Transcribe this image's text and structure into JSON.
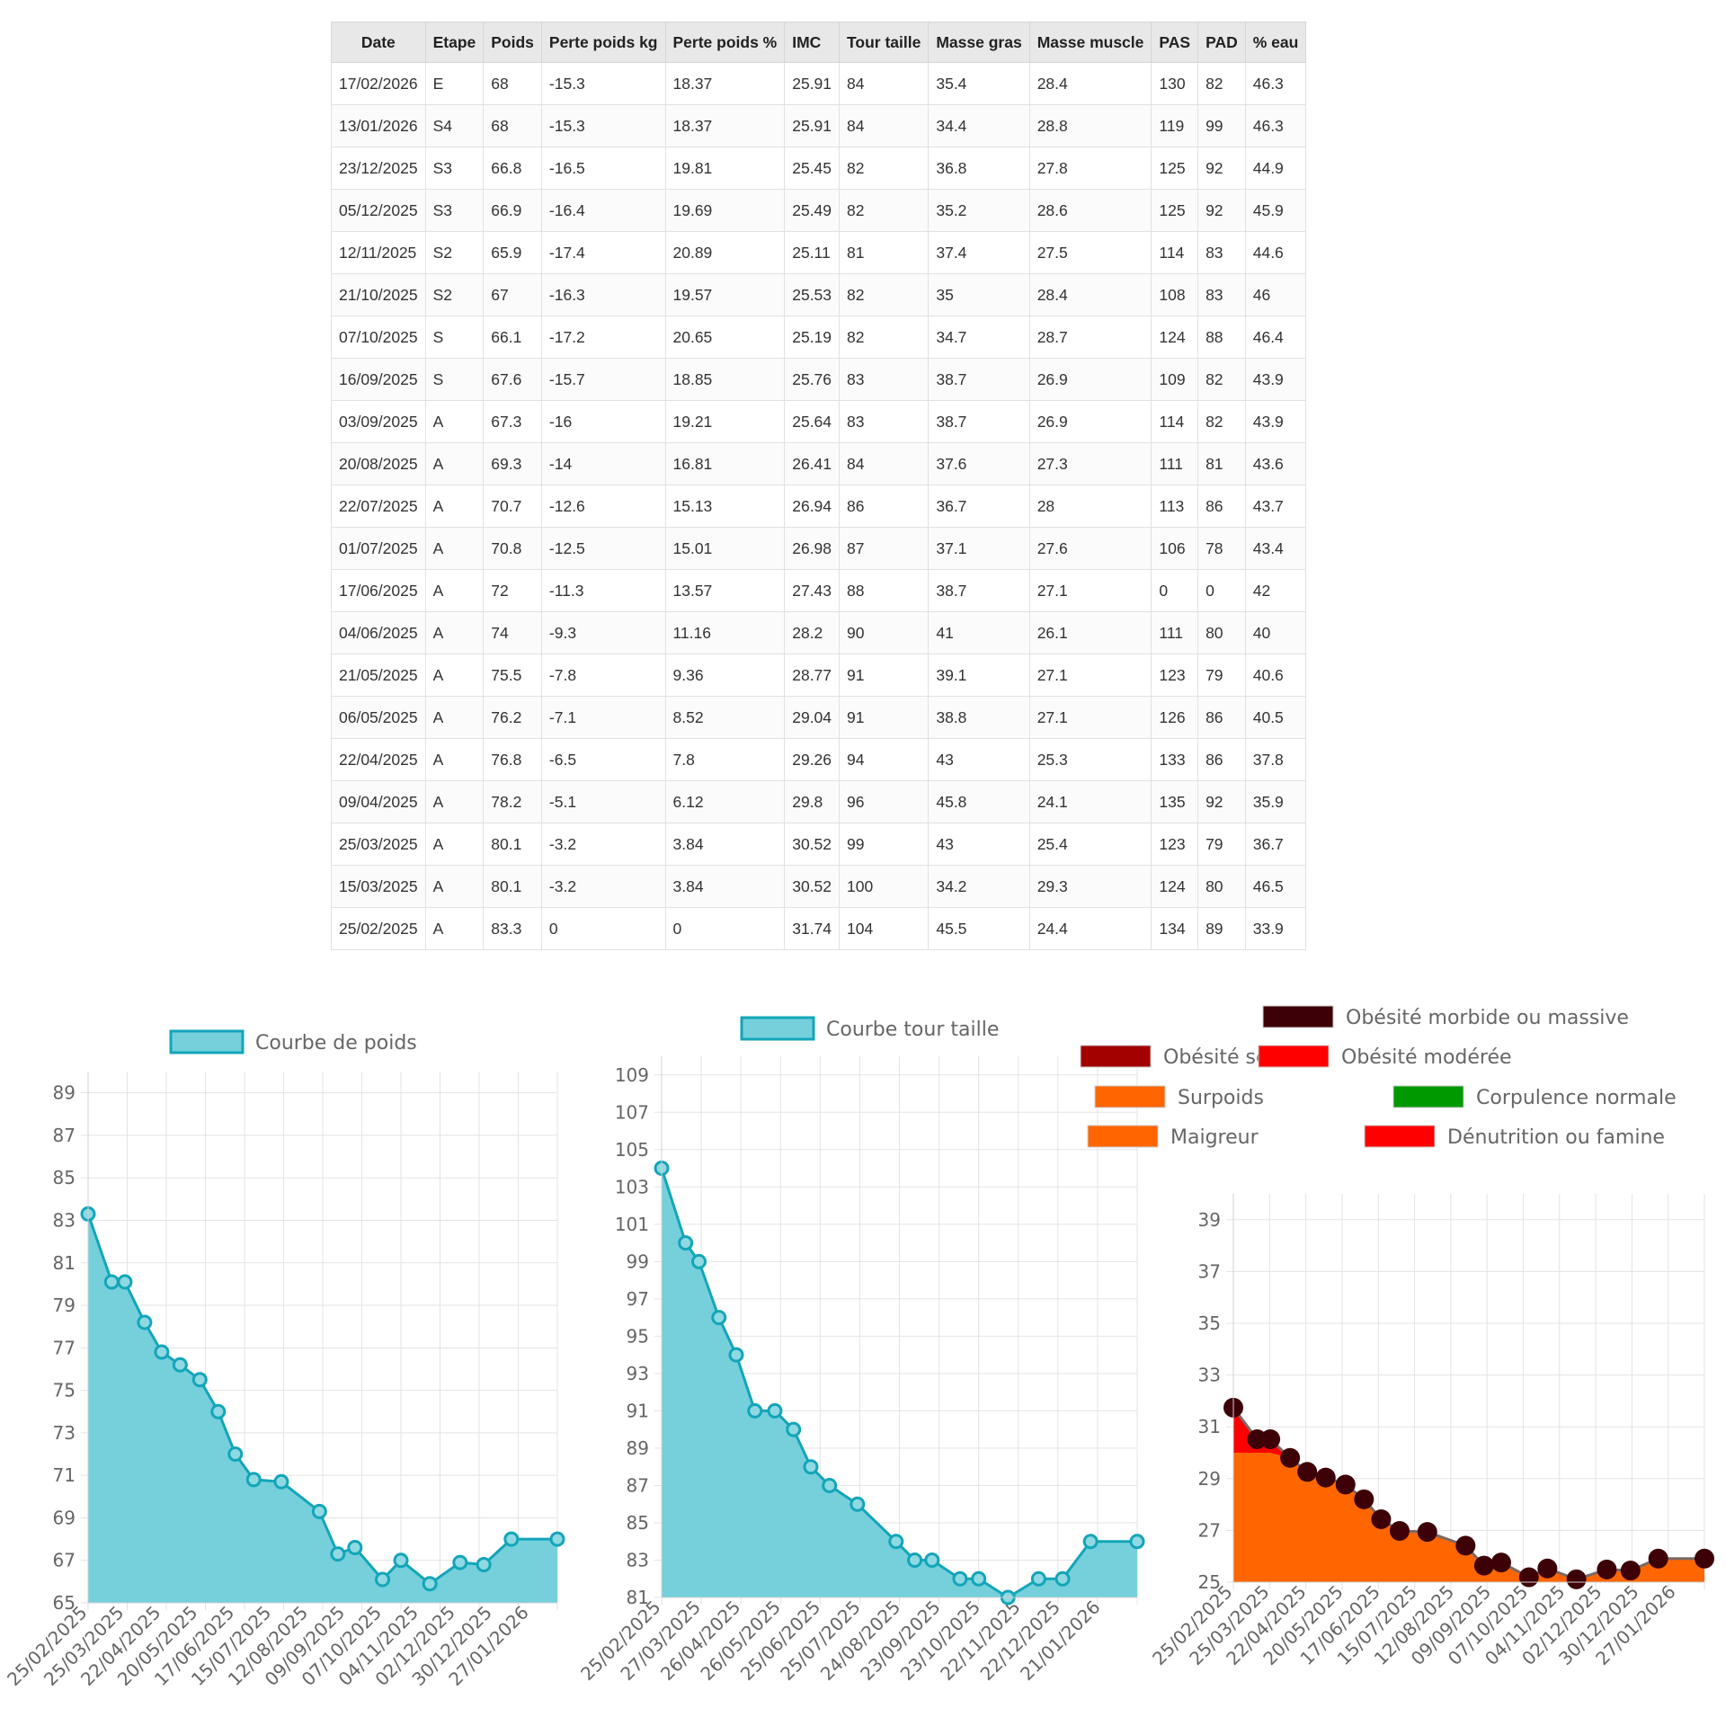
{
  "table": {
    "headers": [
      "Date",
      "Etape",
      "Poids",
      "Perte poids kg",
      "Perte poids %",
      "IMC",
      "Tour taille",
      "Masse gras",
      "Masse muscle",
      "PAS",
      "PAD",
      "% eau"
    ],
    "rows": [
      [
        "17/02/2026",
        "E",
        "68",
        "-15.3",
        "18.37",
        "25.91",
        "84",
        "35.4",
        "28.4",
        "130",
        "82",
        "46.3"
      ],
      [
        "13/01/2026",
        "S4",
        "68",
        "-15.3",
        "18.37",
        "25.91",
        "84",
        "34.4",
        "28.8",
        "119",
        "99",
        "46.3"
      ],
      [
        "23/12/2025",
        "S3",
        "66.8",
        "-16.5",
        "19.81",
        "25.45",
        "82",
        "36.8",
        "27.8",
        "125",
        "92",
        "44.9"
      ],
      [
        "05/12/2025",
        "S3",
        "66.9",
        "-16.4",
        "19.69",
        "25.49",
        "82",
        "35.2",
        "28.6",
        "125",
        "92",
        "45.9"
      ],
      [
        "12/11/2025",
        "S2",
        "65.9",
        "-17.4",
        "20.89",
        "25.11",
        "81",
        "37.4",
        "27.5",
        "114",
        "83",
        "44.6"
      ],
      [
        "21/10/2025",
        "S2",
        "67",
        "-16.3",
        "19.57",
        "25.53",
        "82",
        "35",
        "28.4",
        "108",
        "83",
        "46"
      ],
      [
        "07/10/2025",
        "S",
        "66.1",
        "-17.2",
        "20.65",
        "25.19",
        "82",
        "34.7",
        "28.7",
        "124",
        "88",
        "46.4"
      ],
      [
        "16/09/2025",
        "S",
        "67.6",
        "-15.7",
        "18.85",
        "25.76",
        "83",
        "38.7",
        "26.9",
        "109",
        "82",
        "43.9"
      ],
      [
        "03/09/2025",
        "A",
        "67.3",
        "-16",
        "19.21",
        "25.64",
        "83",
        "38.7",
        "26.9",
        "114",
        "82",
        "43.9"
      ],
      [
        "20/08/2025",
        "A",
        "69.3",
        "-14",
        "16.81",
        "26.41",
        "84",
        "37.6",
        "27.3",
        "111",
        "81",
        "43.6"
      ],
      [
        "22/07/2025",
        "A",
        "70.7",
        "-12.6",
        "15.13",
        "26.94",
        "86",
        "36.7",
        "28",
        "113",
        "86",
        "43.7"
      ],
      [
        "01/07/2025",
        "A",
        "70.8",
        "-12.5",
        "15.01",
        "26.98",
        "87",
        "37.1",
        "27.6",
        "106",
        "78",
        "43.4"
      ],
      [
        "17/06/2025",
        "A",
        "72",
        "-11.3",
        "13.57",
        "27.43",
        "88",
        "38.7",
        "27.1",
        "0",
        "0",
        "42"
      ],
      [
        "04/06/2025",
        "A",
        "74",
        "-9.3",
        "11.16",
        "28.2",
        "90",
        "41",
        "26.1",
        "111",
        "80",
        "40"
      ],
      [
        "21/05/2025",
        "A",
        "75.5",
        "-7.8",
        "9.36",
        "28.77",
        "91",
        "39.1",
        "27.1",
        "123",
        "79",
        "40.6"
      ],
      [
        "06/05/2025",
        "A",
        "76.2",
        "-7.1",
        "8.52",
        "29.04",
        "91",
        "38.8",
        "27.1",
        "126",
        "86",
        "40.5"
      ],
      [
        "22/04/2025",
        "A",
        "76.8",
        "-6.5",
        "7.8",
        "29.26",
        "94",
        "43",
        "25.3",
        "133",
        "86",
        "37.8"
      ],
      [
        "09/04/2025",
        "A",
        "78.2",
        "-5.1",
        "6.12",
        "29.8",
        "96",
        "45.8",
        "24.1",
        "135",
        "92",
        "35.9"
      ],
      [
        "25/03/2025",
        "A",
        "80.1",
        "-3.2",
        "3.84",
        "30.52",
        "99",
        "43",
        "25.4",
        "123",
        "79",
        "36.7"
      ],
      [
        "15/03/2025",
        "A",
        "80.1",
        "-3.2",
        "3.84",
        "30.52",
        "100",
        "34.2",
        "29.3",
        "124",
        "80",
        "46.5"
      ],
      [
        "25/02/2025",
        "A",
        "83.3",
        "0",
        "0",
        "31.74",
        "104",
        "45.5",
        "24.4",
        "134",
        "89",
        "33.9"
      ]
    ]
  },
  "chart_data": [
    {
      "type": "area",
      "legend": [
        "Courbe de poids"
      ],
      "x_tick_labels": [
        "25/02/2025",
        "25/03/2025",
        "22/04/2025",
        "20/05/2025",
        "17/06/2025",
        "15/07/2025",
        "12/08/2025",
        "09/09/2025",
        "07/10/2025",
        "04/11/2025",
        "02/12/2025",
        "30/12/2025",
        "27/01/2026"
      ],
      "y_ticks": [
        65,
        67,
        69,
        71,
        73,
        75,
        77,
        79,
        81,
        83,
        85,
        87,
        89
      ],
      "ylim": [
        65,
        90
      ],
      "grid": true,
      "colors": {
        "line": "#13a5b9",
        "fill": "#75d0dc"
      },
      "series": [
        {
          "name": "Courbe de poids",
          "x": [
            "2025-02-25",
            "2025-03-15",
            "2025-03-25",
            "2025-04-09",
            "2025-04-22",
            "2025-05-06",
            "2025-05-21",
            "2025-06-04",
            "2025-06-17",
            "2025-07-01",
            "2025-07-22",
            "2025-08-20",
            "2025-09-03",
            "2025-09-16",
            "2025-10-07",
            "2025-10-21",
            "2025-11-12",
            "2025-12-05",
            "2025-12-23",
            "2026-01-13",
            "2026-02-17"
          ],
          "y": [
            83.3,
            80.1,
            80.1,
            78.2,
            76.8,
            76.2,
            75.5,
            74,
            72,
            70.8,
            70.7,
            69.3,
            67.3,
            67.6,
            66.1,
            67,
            65.9,
            66.9,
            66.8,
            68,
            68
          ]
        }
      ]
    },
    {
      "type": "area",
      "legend": [
        "Courbe tour taille"
      ],
      "x_tick_labels": [
        "25/02/2025",
        "27/03/2025",
        "26/04/2025",
        "26/05/2025",
        "25/06/2025",
        "25/07/2025",
        "24/08/2025",
        "23/09/2025",
        "23/10/2025",
        "22/11/2025",
        "22/12/2025",
        "21/01/2026"
      ],
      "y_ticks": [
        81,
        83,
        85,
        87,
        89,
        91,
        93,
        95,
        97,
        99,
        101,
        103,
        105,
        107,
        109
      ],
      "ylim": [
        81,
        110
      ],
      "grid": true,
      "colors": {
        "line": "#13a5b9",
        "fill": "#75d0dc"
      },
      "series": [
        {
          "name": "Courbe tour taille",
          "x": [
            "2025-02-25",
            "2025-03-15",
            "2025-03-25",
            "2025-04-09",
            "2025-04-22",
            "2025-05-06",
            "2025-05-21",
            "2025-06-04",
            "2025-06-17",
            "2025-07-01",
            "2025-07-22",
            "2025-08-20",
            "2025-09-03",
            "2025-09-16",
            "2025-10-07",
            "2025-10-21",
            "2025-11-12",
            "2025-12-05",
            "2025-12-23",
            "2026-01-13",
            "2026-02-17"
          ],
          "y": [
            104,
            100,
            99,
            96,
            94,
            91,
            91,
            90,
            88,
            87,
            86,
            84,
            83,
            83,
            82,
            82,
            81,
            82,
            82,
            84,
            84
          ]
        }
      ]
    },
    {
      "type": "area",
      "legend": [
        "Obésité morbide ou massive",
        "Obésité sévère",
        "Obésité modérée",
        "Surpoids",
        "Corpulence normale",
        "Maigreur",
        "Dénutrition ou famine"
      ],
      "legend_colors": [
        "#3d0007",
        "#a30000",
        "#ff0000",
        "#ff6600",
        "#009900",
        "#ff6600",
        "#ff0000"
      ],
      "x_tick_labels": [
        "25/02/2025",
        "25/03/2025",
        "22/04/2025",
        "20/05/2025",
        "17/06/2025",
        "15/07/2025",
        "12/08/2025",
        "09/09/2025",
        "07/10/2025",
        "04/11/2025",
        "02/12/2025",
        "30/12/2025",
        "27/01/2026"
      ],
      "y_ticks": [
        25,
        27,
        29,
        31,
        33,
        35,
        37,
        39
      ],
      "ylim": [
        25,
        40
      ],
      "grid": true,
      "colors": {
        "line": "#7a6a66",
        "marker": "#3d0007",
        "fill_overweight": "#ff6600",
        "fill_obese": "#ff0000"
      },
      "series": [
        {
          "name": "IMC",
          "x": [
            "2025-02-25",
            "2025-03-15",
            "2025-03-25",
            "2025-04-09",
            "2025-04-22",
            "2025-05-06",
            "2025-05-21",
            "2025-06-04",
            "2025-06-17",
            "2025-07-01",
            "2025-07-22",
            "2025-08-20",
            "2025-09-03",
            "2025-09-16",
            "2025-10-07",
            "2025-10-21",
            "2025-11-12",
            "2025-12-05",
            "2025-12-23",
            "2026-01-13",
            "2026-02-17"
          ],
          "y": [
            31.74,
            30.52,
            30.52,
            29.8,
            29.26,
            29.04,
            28.77,
            28.2,
            27.43,
            26.98,
            26.94,
            26.41,
            25.64,
            25.76,
            25.19,
            25.53,
            25.11,
            25.49,
            25.45,
            25.91,
            25.91
          ]
        }
      ]
    }
  ]
}
